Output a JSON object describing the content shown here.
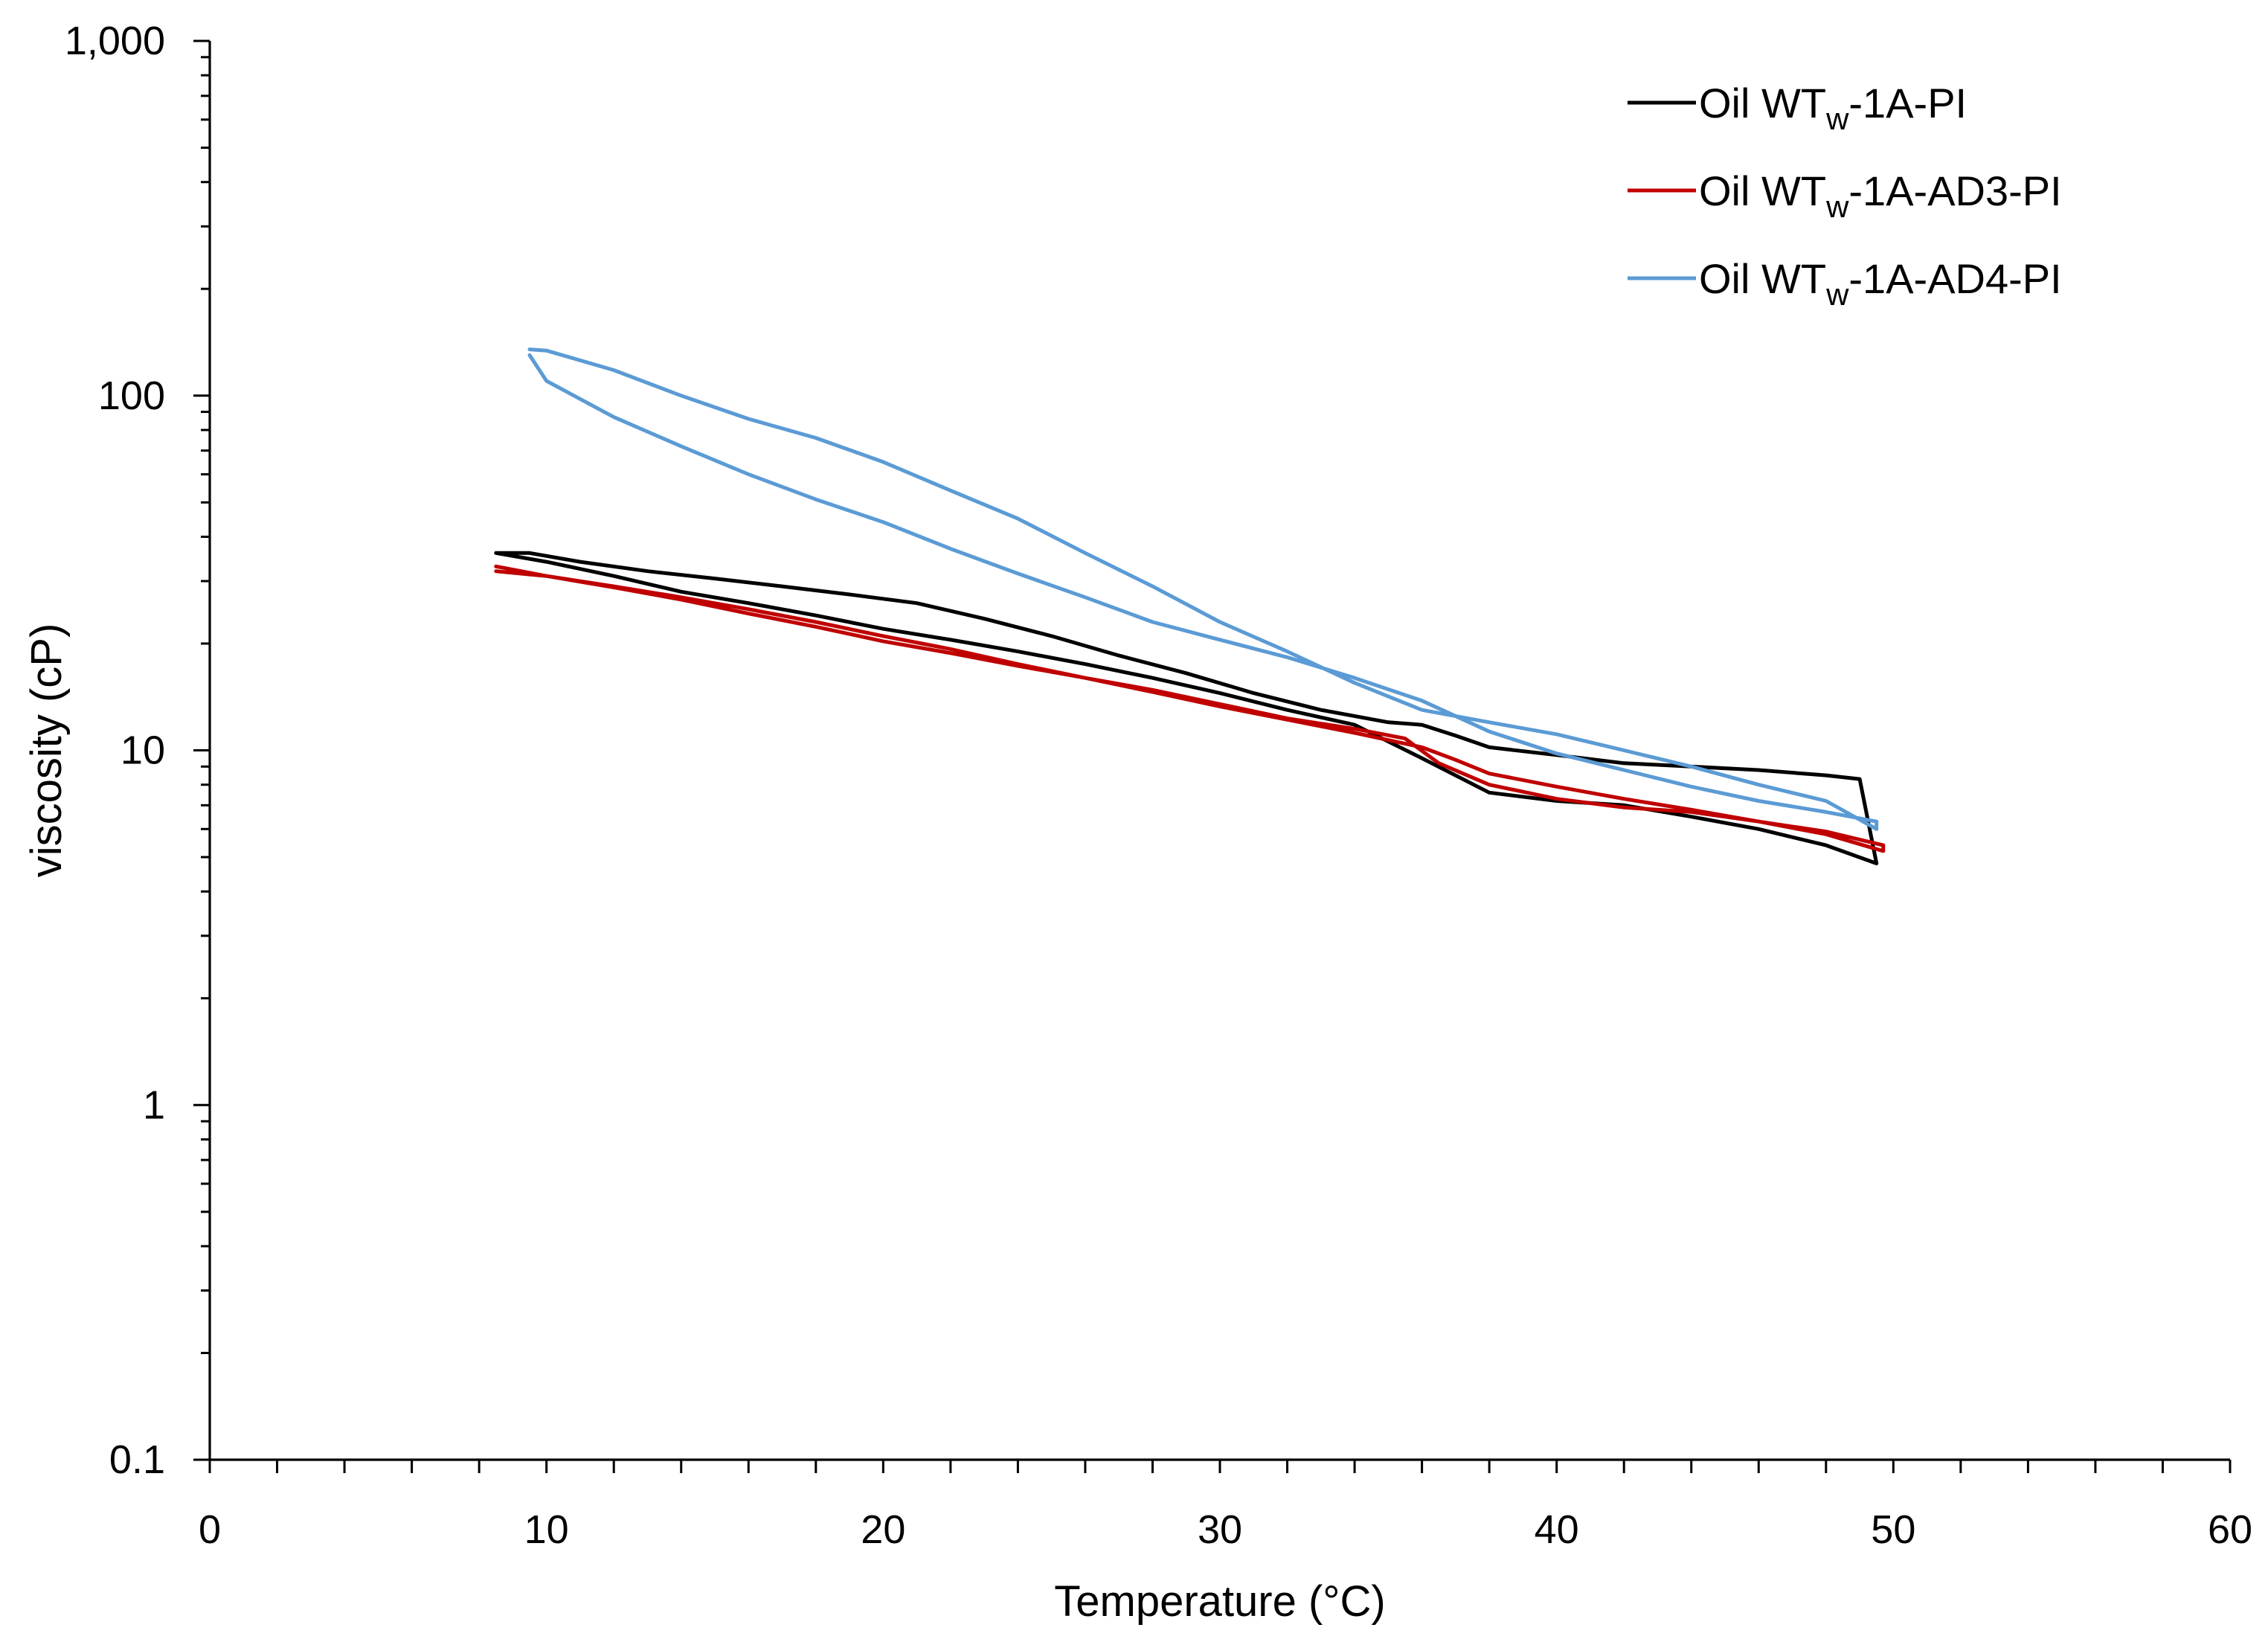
{
  "chart_data": {
    "type": "line",
    "title": "",
    "xlabel": "Temperature (°C)",
    "ylabel": "viscosity (cP)",
    "xlim": [
      0,
      60
    ],
    "ylim": [
      0.1,
      1000
    ],
    "yscale": "log",
    "grid": false,
    "legend_position": "top-right",
    "x_ticks": [
      0,
      10,
      20,
      30,
      40,
      50,
      60
    ],
    "x_tick_labels": [
      "0",
      "10",
      "20",
      "30",
      "40",
      "50",
      "60"
    ],
    "y_ticks": [
      0.1,
      1,
      10,
      100,
      1000
    ],
    "y_tick_labels": [
      "0.1",
      "1",
      "10",
      "100",
      "1,000"
    ],
    "series": [
      {
        "name": "Oil WTw-1A-PI",
        "legend_main": "Oil WT",
        "legend_sub": "w",
        "legend_suffix": "-1A-PI",
        "color": "#000000",
        "x": [
          8.5,
          9.5,
          11,
          13,
          15,
          17,
          19,
          21,
          23,
          25,
          27,
          29,
          31,
          33,
          35,
          36,
          37,
          38,
          40,
          42,
          44,
          46,
          48,
          49,
          49.5,
          48,
          46,
          44,
          42,
          40,
          38,
          36,
          34,
          32,
          30,
          28,
          26,
          24,
          22,
          20,
          18,
          16,
          14,
          12,
          10,
          8.5
        ],
        "y": [
          36,
          36,
          34,
          32,
          30.5,
          29,
          27.5,
          26,
          23.5,
          21,
          18.5,
          16.5,
          14.5,
          13,
          12,
          11.8,
          11,
          10.2,
          9.7,
          9.2,
          9,
          8.8,
          8.5,
          8.3,
          4.8,
          5.4,
          6,
          6.5,
          7,
          7.2,
          7.6,
          9.5,
          11.8,
          13,
          14.5,
          16,
          17.5,
          19,
          20.5,
          22,
          24,
          26,
          28,
          31,
          34,
          36
        ]
      },
      {
        "name": "Oil WTw-1A-AD3-PI",
        "legend_main": "Oil WT",
        "legend_sub": "w",
        "legend_suffix": "-1A-AD3-PI",
        "color": "#c00000",
        "x": [
          8.5,
          10,
          12,
          14,
          16,
          18,
          20,
          22,
          24,
          26,
          28,
          30,
          32,
          34,
          35.5,
          36.5,
          38,
          40,
          42,
          44,
          46,
          48,
          49.7,
          49.7,
          48,
          46,
          44,
          42,
          40,
          38,
          37,
          36,
          34,
          32,
          30,
          28,
          26,
          24,
          22,
          20,
          18,
          16,
          14,
          12,
          10,
          8.5
        ],
        "y": [
          32,
          31,
          29,
          27,
          25,
          23,
          21,
          19.3,
          17.5,
          16,
          14.8,
          13.5,
          12.3,
          11.5,
          10.8,
          9.2,
          8,
          7.3,
          6.9,
          6.7,
          6.3,
          5.9,
          5.4,
          5.2,
          5.8,
          6.3,
          6.8,
          7.3,
          7.9,
          8.6,
          9.4,
          10.2,
          11.2,
          12.2,
          13.3,
          14.6,
          16,
          17.3,
          18.8,
          20.3,
          22.3,
          24.3,
          26.6,
          28.8,
          31,
          33
        ]
      },
      {
        "name": "Oil WTw-1A-AD4-PI",
        "legend_main": "Oil WT",
        "legend_sub": "w",
        "legend_suffix": "-1A-AD4-PI",
        "color": "#5b9bd5",
        "x": [
          9.5,
          10,
          12,
          14,
          16,
          18,
          20,
          22,
          24,
          26,
          28,
          30,
          32,
          34,
          36,
          38,
          40,
          42,
          44,
          46,
          48,
          49.5,
          49.5,
          48,
          46,
          44,
          42,
          40,
          38,
          36,
          34,
          32,
          30,
          28,
          26,
          24,
          22,
          20,
          18,
          16,
          14,
          12,
          10,
          9.5
        ],
        "y": [
          135,
          134,
          118,
          100,
          86,
          76,
          65,
          54,
          45,
          36,
          29,
          23,
          19,
          15.5,
          13,
          12,
          11.1,
          10,
          9,
          8,
          7.2,
          6,
          6.3,
          6.7,
          7.2,
          7.9,
          8.8,
          9.8,
          11.3,
          13.8,
          16,
          18.3,
          20.5,
          23,
          27,
          31.5,
          37,
          44,
          51,
          60,
          72,
          87,
          110,
          130
        ]
      }
    ]
  }
}
